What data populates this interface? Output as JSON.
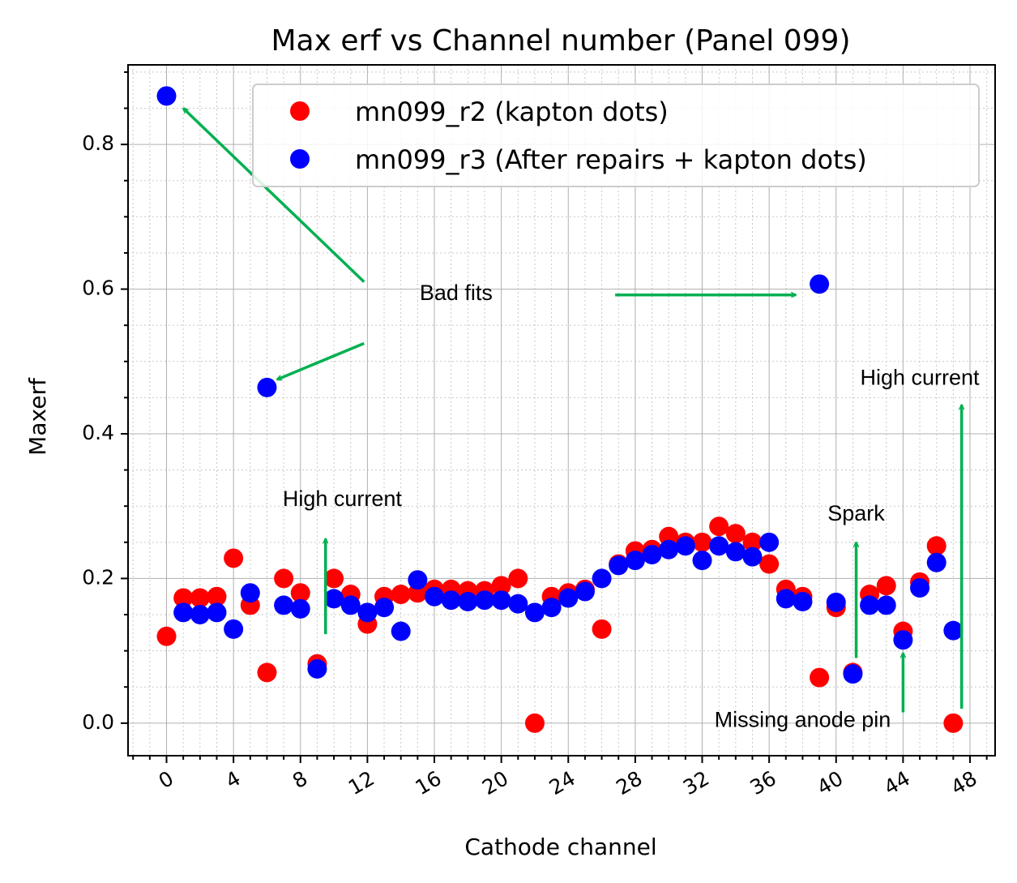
{
  "chart_data": {
    "type": "scatter",
    "title": "Max erf vs Channel number (Panel 099)",
    "xlabel": "Cathode channel",
    "ylabel": "Maxerf",
    "xlim": [
      -2.3,
      49.5
    ],
    "ylim": [
      -0.045,
      0.91
    ],
    "x_ticks": [
      0,
      4,
      8,
      12,
      16,
      20,
      24,
      28,
      32,
      36,
      40,
      44,
      48
    ],
    "x_tick_labels": [
      "0",
      "4",
      "8",
      "12",
      "16",
      "20",
      "24",
      "28",
      "32",
      "36",
      "40",
      "44",
      "48"
    ],
    "y_ticks": [
      0.0,
      0.2,
      0.4,
      0.6,
      0.8
    ],
    "y_tick_labels": [
      "0.0",
      "0.2",
      "0.4",
      "0.6",
      "0.8"
    ],
    "grid": true,
    "legend_position": "top-right",
    "series": [
      {
        "name": "mn099_r2 (kapton dots)",
        "color": "#ff0000",
        "points": [
          [
            0,
            0.12
          ],
          [
            1,
            0.173
          ],
          [
            2,
            0.173
          ],
          [
            3,
            0.175
          ],
          [
            4,
            0.228
          ],
          [
            5,
            0.163
          ],
          [
            6,
            0.07
          ],
          [
            7,
            0.2
          ],
          [
            8,
            0.18
          ],
          [
            9,
            0.082
          ],
          [
            10,
            0.2
          ],
          [
            11,
            0.178
          ],
          [
            12,
            0.137
          ],
          [
            13,
            0.175
          ],
          [
            14,
            0.178
          ],
          [
            15,
            0.18
          ],
          [
            16,
            0.185
          ],
          [
            17,
            0.185
          ],
          [
            18,
            0.183
          ],
          [
            19,
            0.183
          ],
          [
            20,
            0.19
          ],
          [
            21,
            0.2
          ],
          [
            22,
            0.0
          ],
          [
            23,
            0.175
          ],
          [
            24,
            0.18
          ],
          [
            25,
            0.185
          ],
          [
            26,
            0.13
          ],
          [
            27,
            0.22
          ],
          [
            28,
            0.238
          ],
          [
            29,
            0.24
          ],
          [
            30,
            0.258
          ],
          [
            31,
            0.25
          ],
          [
            32,
            0.25
          ],
          [
            33,
            0.272
          ],
          [
            34,
            0.262
          ],
          [
            35,
            0.25
          ],
          [
            36,
            0.22
          ],
          [
            37,
            0.185
          ],
          [
            38,
            0.175
          ],
          [
            40,
            0.16
          ],
          [
            39,
            0.063
          ],
          [
            41,
            0.07
          ],
          [
            42,
            0.178
          ],
          [
            43,
            0.19
          ],
          [
            44,
            0.127
          ],
          [
            45,
            0.195
          ],
          [
            46,
            0.245
          ],
          [
            47,
            0.0
          ]
        ]
      },
      {
        "name": "mn099_r3 (After repairs + kapton dots)",
        "color": "#0000ff",
        "points": [
          [
            0,
            0.867
          ],
          [
            1,
            0.153
          ],
          [
            2,
            0.15
          ],
          [
            3,
            0.153
          ],
          [
            4,
            0.13
          ],
          [
            5,
            0.18
          ],
          [
            6,
            0.464
          ],
          [
            7,
            0.163
          ],
          [
            8,
            0.158
          ],
          [
            9,
            0.075
          ],
          [
            10,
            0.172
          ],
          [
            11,
            0.163
          ],
          [
            12,
            0.153
          ],
          [
            13,
            0.16
          ],
          [
            14,
            0.127
          ],
          [
            15,
            0.198
          ],
          [
            16,
            0.175
          ],
          [
            17,
            0.17
          ],
          [
            18,
            0.168
          ],
          [
            19,
            0.17
          ],
          [
            20,
            0.17
          ],
          [
            21,
            0.165
          ],
          [
            22,
            0.153
          ],
          [
            23,
            0.16
          ],
          [
            24,
            0.173
          ],
          [
            25,
            0.182
          ],
          [
            26,
            0.2
          ],
          [
            27,
            0.218
          ],
          [
            28,
            0.225
          ],
          [
            29,
            0.233
          ],
          [
            30,
            0.24
          ],
          [
            31,
            0.245
          ],
          [
            32,
            0.225
          ],
          [
            33,
            0.245
          ],
          [
            34,
            0.237
          ],
          [
            35,
            0.23
          ],
          [
            36,
            0.25
          ],
          [
            37,
            0.172
          ],
          [
            38,
            0.168
          ],
          [
            39,
            0.607
          ],
          [
            40,
            0.167
          ],
          [
            41,
            0.068
          ],
          [
            42,
            0.163
          ],
          [
            43,
            0.163
          ],
          [
            44,
            0.115
          ],
          [
            45,
            0.187
          ],
          [
            46,
            0.222
          ],
          [
            47,
            0.128
          ]
        ]
      }
    ],
    "annotations": [
      {
        "text": "Bad fits",
        "text_at": [
          17.3,
          0.585
        ],
        "arrows": [
          {
            "from": [
              11.8,
              0.61
            ],
            "to": [
              1.0,
              0.85
            ]
          },
          {
            "from": [
              11.8,
              0.525
            ],
            "to": [
              6.6,
              0.475
            ]
          },
          {
            "from": [
              26.8,
              0.592
            ],
            "to": [
              37.6,
              0.592
            ]
          }
        ]
      },
      {
        "text": "High current",
        "text_at": [
          10.5,
          0.3
        ],
        "arrows": [
          {
            "from": [
              9.5,
              0.123
            ],
            "to": [
              9.5,
              0.255
            ]
          }
        ]
      },
      {
        "text": "Spark",
        "text_at": [
          41.2,
          0.28
        ],
        "arrows": [
          {
            "from": [
              41.2,
              0.09
            ],
            "to": [
              41.2,
              0.25
            ]
          }
        ]
      },
      {
        "text": "High current",
        "text_at": [
          45.0,
          0.468
        ],
        "arrows": [
          {
            "from": [
              47.5,
              0.02
            ],
            "to": [
              47.5,
              0.44
            ]
          }
        ]
      },
      {
        "text": "Missing anode pin",
        "text_at": [
          38.0,
          -0.005
        ],
        "arrows": [
          {
            "from": [
              44.0,
              0.015
            ],
            "to": [
              44.0,
              0.097
            ]
          }
        ]
      }
    ]
  }
}
